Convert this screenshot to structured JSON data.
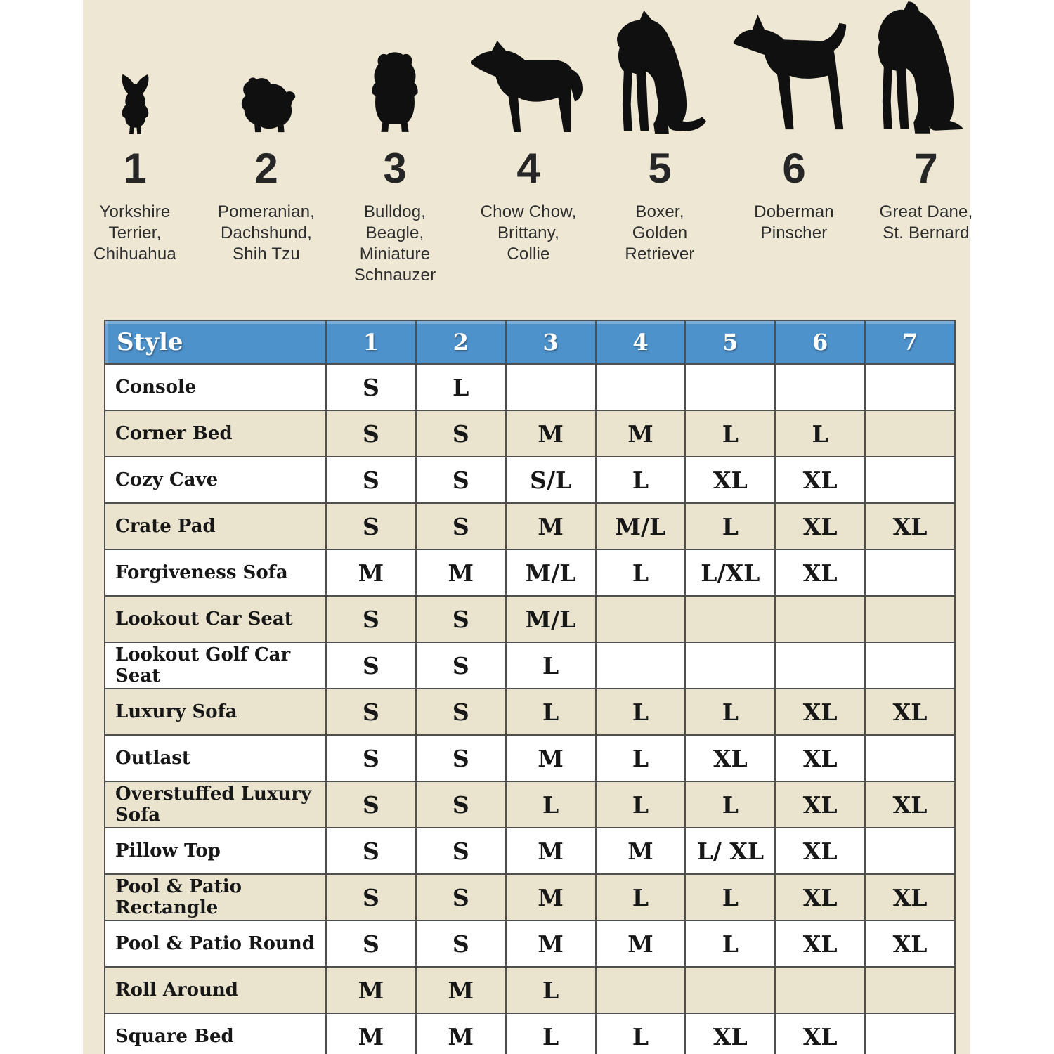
{
  "colors": {
    "header_blue": "#4E92CB",
    "panel_beige": "#EDE7D3",
    "row_beige": "#EAE4CF",
    "row_white": "#FFFFFF",
    "border_gray": "#4F4F4F",
    "silhouette_black": "#101010"
  },
  "size_guide": {
    "dogs": [
      {
        "number": "1",
        "label": "Yorkshire\nTerrier,\nChihuahua",
        "icon": "chihuahua-icon"
      },
      {
        "number": "2",
        "label": "Pomeranian,\nDachshund,\nShih Tzu",
        "icon": "pomeranian-icon"
      },
      {
        "number": "3",
        "label": "Bulldog,\nBeagle,\nMiniature\nSchnauzer",
        "icon": "bulldog-icon"
      },
      {
        "number": "4",
        "label": "Chow Chow,\nBrittany,\nCollie",
        "icon": "collie-icon"
      },
      {
        "number": "5",
        "label": "Boxer,\nGolden\nRetriever",
        "icon": "boxer-icon"
      },
      {
        "number": "6",
        "label": "Doberman\nPinscher",
        "icon": "doberman-icon"
      },
      {
        "number": "7",
        "label": "Great Dane,\nSt. Bernard",
        "icon": "great-dane-icon"
      }
    ]
  },
  "table": {
    "header": {
      "style_label": "Style",
      "columns": [
        "1",
        "2",
        "3",
        "4",
        "5",
        "6",
        "7"
      ]
    },
    "rows": [
      {
        "style": "Console",
        "sizes": [
          "S",
          "L",
          "",
          "",
          "",
          "",
          ""
        ]
      },
      {
        "style": "Corner Bed",
        "sizes": [
          "S",
          "S",
          "M",
          "M",
          "L",
          "L",
          ""
        ]
      },
      {
        "style": "Cozy Cave",
        "sizes": [
          "S",
          "S",
          "S/L",
          "L",
          "XL",
          "XL",
          ""
        ]
      },
      {
        "style": "Crate Pad",
        "sizes": [
          "S",
          "S",
          "M",
          "M/L",
          "L",
          "XL",
          "XL"
        ]
      },
      {
        "style": "Forgiveness Sofa",
        "sizes": [
          "M",
          "M",
          "M/L",
          "L",
          "L/XL",
          "XL",
          ""
        ]
      },
      {
        "style": "Lookout Car Seat",
        "sizes": [
          "S",
          "S",
          "M/L",
          "",
          "",
          "",
          ""
        ]
      },
      {
        "style": "Lookout Golf Car Seat",
        "sizes": [
          "S",
          "S",
          "L",
          "",
          "",
          "",
          ""
        ]
      },
      {
        "style": "Luxury Sofa",
        "sizes": [
          "S",
          "S",
          "L",
          "L",
          "L",
          "XL",
          "XL"
        ]
      },
      {
        "style": "Outlast",
        "sizes": [
          "S",
          "S",
          "M",
          "L",
          "XL",
          "XL",
          ""
        ]
      },
      {
        "style": "Overstuffed Luxury Sofa",
        "sizes": [
          "S",
          "S",
          "L",
          "L",
          "L",
          "XL",
          "XL"
        ]
      },
      {
        "style": "Pillow Top",
        "sizes": [
          "S",
          "S",
          "M",
          "M",
          "L/ XL",
          "XL",
          ""
        ]
      },
      {
        "style": "Pool & Patio Rectangle",
        "sizes": [
          "S",
          "S",
          "M",
          "L",
          "L",
          "XL",
          "XL"
        ]
      },
      {
        "style": "Pool & Patio Round",
        "sizes": [
          "S",
          "S",
          "M",
          "M",
          "L",
          "XL",
          "XL"
        ]
      },
      {
        "style": "Roll Around",
        "sizes": [
          "M",
          "M",
          "L",
          "",
          "",
          "",
          ""
        ]
      },
      {
        "style": "Square Bed",
        "sizes": [
          "M",
          "M",
          "L",
          "L",
          "XL",
          "XL",
          ""
        ]
      }
    ]
  }
}
